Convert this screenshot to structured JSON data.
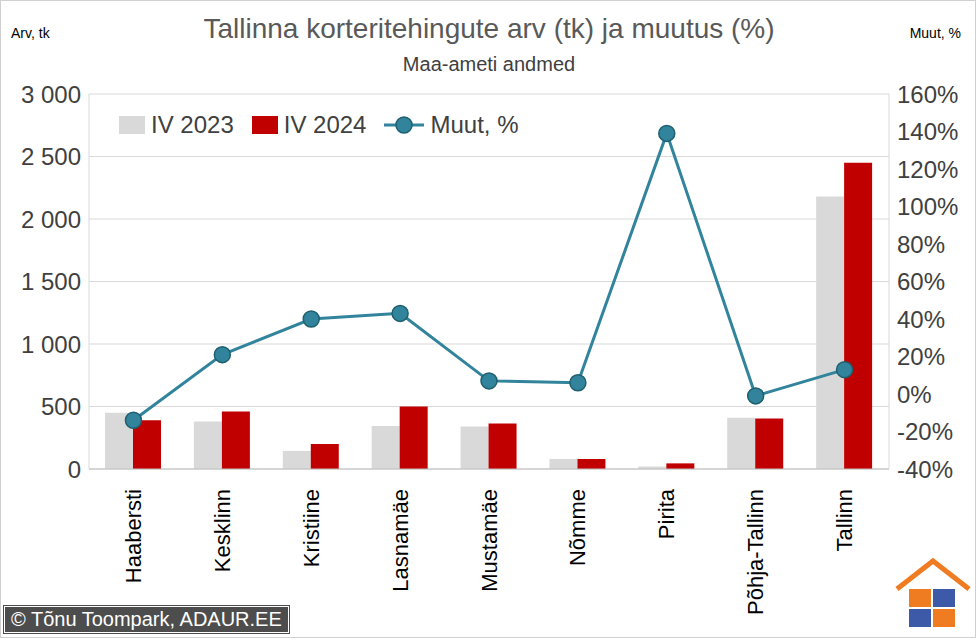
{
  "chart_data": {
    "type": "bar",
    "title": "Tallinna korteritehingute arv (tk) ja muutus (%)",
    "subtitle": "Maa-ameti andmed",
    "y_label": "Arv, tk",
    "y2_label": "Muut, %",
    "credit": "© Tõnu Toompark, ADAUR.EE",
    "categories": [
      "Haabersti",
      "Kesklinn",
      "Kristiine",
      "Lasnamäe",
      "Mustamäe",
      "Nõmme",
      "Pirita",
      "Põhja-Tallinn",
      "Tallinn"
    ],
    "series": [
      {
        "name": "IV 2023",
        "color": "#d9d9d9",
        "values": [
          450,
          380,
          145,
          345,
          340,
          80,
          20,
          410,
          2180
        ]
      },
      {
        "name": "IV 2024",
        "color": "#c00000",
        "values": [
          390,
          460,
          200,
          500,
          365,
          80,
          45,
          405,
          2450
        ]
      },
      {
        "name": "Muut, %",
        "color": "#31849b",
        "type": "line",
        "marker": "circle",
        "axis": "y2",
        "values": [
          -14,
          21,
          40,
          43,
          7,
          6,
          139,
          -1,
          13
        ]
      }
    ],
    "ylim": [
      0,
      3000
    ],
    "yticks": [
      {
        "value": 0,
        "label": "0"
      },
      {
        "value": 500,
        "label": "500"
      },
      {
        "value": 1000,
        "label": "1 000"
      },
      {
        "value": 1500,
        "label": "1 500"
      },
      {
        "value": 2000,
        "label": "2 000"
      },
      {
        "value": 2500,
        "label": "2 500"
      },
      {
        "value": 3000,
        "label": "3 000"
      }
    ],
    "y2lim": [
      -40,
      160
    ],
    "y2ticks": [
      {
        "value": -40,
        "label": "-40%"
      },
      {
        "value": -20,
        "label": "-20%"
      },
      {
        "value": 0,
        "label": "0%"
      },
      {
        "value": 20,
        "label": "20%"
      },
      {
        "value": 40,
        "label": "40%"
      },
      {
        "value": 60,
        "label": "60%"
      },
      {
        "value": 80,
        "label": "80%"
      },
      {
        "value": 100,
        "label": "100%"
      },
      {
        "value": 120,
        "label": "120%"
      },
      {
        "value": 140,
        "label": "140%"
      },
      {
        "value": 160,
        "label": "160%"
      }
    ],
    "grid": true,
    "legend": "upper left"
  }
}
